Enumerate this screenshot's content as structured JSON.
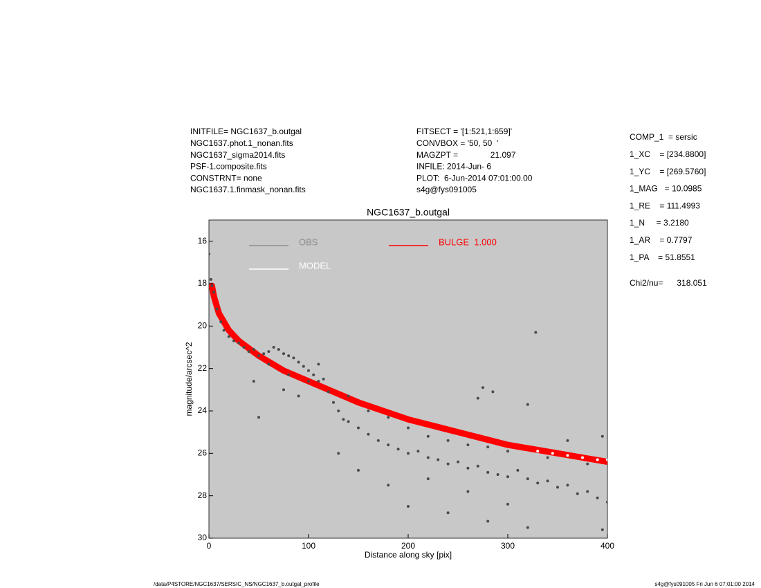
{
  "header": {
    "left": [
      "INITFILE= NGC1637_b.outgal",
      "NGC1637.phot.1_nonan.fits",
      "NGC1637_sigma2014.fits",
      "PSF-1.composite.fits",
      "CONSTRNT= none",
      "NGC1637.1.finmask_nonan.fits"
    ],
    "middle": [
      "FITSECT = '[1:521,1:659]'",
      "CONVBOX = '50, 50  '",
      "MAGZPT =              21.097",
      "INFILE: 2014-Jun- 6",
      "PLOT:  6-Jun-2014 07:01:00.00",
      "s4g@fys091005"
    ],
    "right": [
      "COMP_1  = sersic",
      "1_XC    = [234.8800]",
      "1_YC    = [269.5760]",
      "1_MAG   = 10.0985",
      "1_RE    = 111.4993",
      "1_N     = 3.2180",
      "1_AR    = 0.7797",
      "1_PA    = 51.8551"
    ],
    "chi": "Chi2/nu=      318.051"
  },
  "footer": {
    "left": "/data/P4STORE/NGC1637/SERSIC_NS/NGC1637_b.outgal_profile",
    "right": "s4g@fys091005  Fri Jun  6 07:01:00 2014"
  },
  "chart_data": {
    "type": "scatter",
    "title": "NGC1637_b.outgal",
    "x_label": "Distance along sky [pix]",
    "y_label": "magnitude/arcsec^2",
    "xlim": [
      0,
      400
    ],
    "xticks": [
      0,
      100,
      200,
      300,
      400
    ],
    "ylim": [
      30,
      15
    ],
    "yticks": [
      16,
      18,
      20,
      22,
      24,
      26,
      28,
      30
    ],
    "background": "#c8c8c8",
    "series": [
      {
        "name": "OBS",
        "color": "#4a4a4a",
        "legend_color": "#8c8c8c",
        "style": "points",
        "x": [
          0,
          2,
          3,
          5,
          8,
          12,
          15,
          20,
          25,
          30,
          35,
          40,
          45,
          50,
          55,
          60,
          65,
          70,
          75,
          80,
          85,
          90,
          95,
          100,
          105,
          110,
          115,
          120,
          125,
          130,
          135,
          140,
          150,
          160,
          170,
          180,
          190,
          200,
          210,
          220,
          230,
          240,
          250,
          260,
          270,
          280,
          290,
          300,
          310,
          320,
          330,
          340,
          350,
          360,
          370,
          380,
          390,
          400,
          50,
          45,
          75,
          90,
          130,
          150,
          180,
          200,
          220,
          240,
          260,
          280,
          300,
          320,
          328,
          275,
          285,
          270,
          320,
          360,
          395,
          395,
          100,
          110,
          60,
          80,
          140,
          160,
          180,
          200,
          220,
          240,
          260,
          280,
          300,
          340,
          380
        ],
        "values": [
          16.6,
          17.8,
          18.1,
          18.4,
          19.2,
          19.8,
          20.2,
          20.5,
          20.7,
          20.8,
          21.0,
          21.2,
          21.1,
          21.4,
          21.3,
          21.2,
          21.0,
          21.1,
          21.3,
          21.4,
          21.5,
          21.7,
          21.9,
          22.1,
          22.3,
          22.6,
          22.5,
          23.1,
          23.6,
          24.0,
          24.4,
          24.5,
          24.8,
          25.1,
          25.4,
          25.6,
          25.8,
          26.0,
          25.9,
          26.2,
          26.3,
          26.5,
          26.4,
          26.7,
          26.6,
          26.9,
          27.0,
          27.1,
          26.8,
          27.2,
          27.4,
          27.3,
          27.6,
          27.5,
          27.9,
          27.8,
          28.1,
          28.3,
          24.3,
          22.6,
          23.0,
          23.3,
          26.0,
          26.8,
          27.5,
          28.5,
          27.2,
          28.8,
          27.8,
          29.2,
          28.4,
          29.5,
          20.3,
          22.9,
          23.1,
          23.4,
          23.7,
          25.4,
          25.2,
          29.6,
          22.6,
          21.8,
          21.8,
          22.3,
          23.3,
          24.0,
          24.3,
          24.8,
          25.2,
          25.4,
          25.6,
          25.7,
          25.9,
          26.2,
          26.5
        ]
      },
      {
        "name": "MODEL",
        "color": "#ffffff",
        "style": "points",
        "x": [
          330,
          345,
          360,
          375,
          390,
          400
        ],
        "values": [
          25.9,
          26.0,
          26.1,
          26.2,
          26.3,
          26.3
        ]
      },
      {
        "name": "BULGE  1.000",
        "color": "#ff0000",
        "style": "band",
        "x": [
          3,
          5,
          10,
          20,
          30,
          50,
          75,
          100,
          125,
          150,
          175,
          200,
          225,
          250,
          275,
          300,
          325,
          350,
          375,
          400
        ],
        "values": [
          18.1,
          18.6,
          19.4,
          20.2,
          20.7,
          21.4,
          22.1,
          22.6,
          23.1,
          23.6,
          24.0,
          24.4,
          24.7,
          25.0,
          25.3,
          25.6,
          25.8,
          26.0,
          26.2,
          26.4
        ]
      }
    ]
  }
}
